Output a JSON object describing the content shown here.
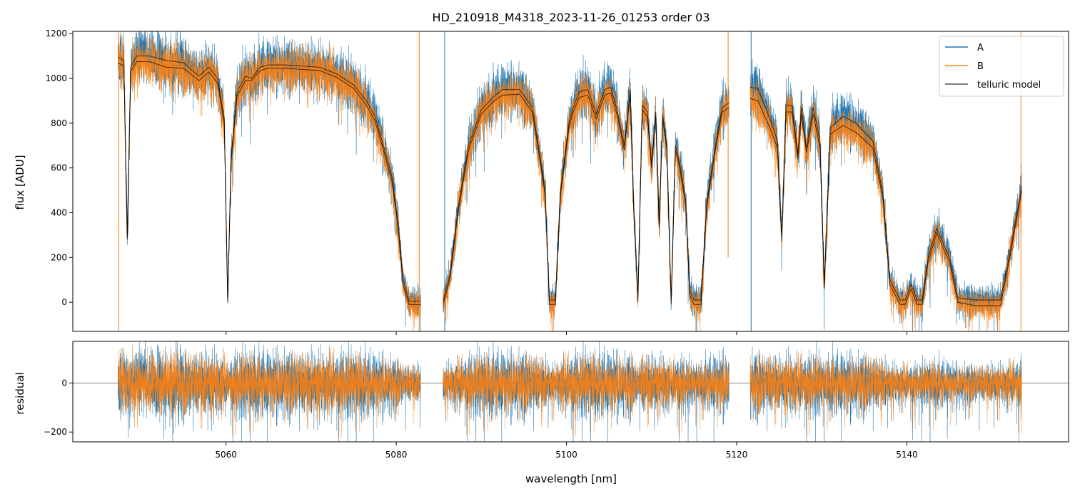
{
  "chart_data": {
    "type": "line",
    "title": "HD_210918_M4318_2023-11-26_01253  order 03",
    "xlabel": "wavelength [nm]",
    "xlim": [
      5042,
      5159
    ],
    "xticks": [
      5060,
      5080,
      5100,
      5120,
      5140
    ],
    "legend_position": "top-right",
    "colors": {
      "A": "#1f77b4",
      "B": "#ff7f0e",
      "model": "#000000"
    },
    "segments": [
      [
        5047.3,
        5082.9
      ],
      [
        5085.5,
        5119.1
      ],
      [
        5121.6,
        5153.5
      ]
    ],
    "panels": [
      {
        "name": "flux",
        "ylabel": "flux [ADU]",
        "ylim": [
          -130,
          1210
        ],
        "yticks": [
          0,
          200,
          400,
          600,
          800,
          1000,
          1200
        ],
        "legend": [
          "A",
          "B",
          "telluric model"
        ],
        "series": [
          {
            "name": "telluric model (A)",
            "x": [
              5047.3,
              5048.0,
              5048.4,
              5048.8,
              5049.5,
              5051,
              5053,
              5055,
              5056.8,
              5058.0,
              5059.0,
              5059.8,
              5060.2,
              5060.6,
              5061.3,
              5062.3,
              5063.0,
              5064.0,
              5065,
              5067,
              5069,
              5071,
              5073,
              5075,
              5076.5,
              5077.5,
              5078.5,
              5079.5,
              5080.2,
              5080.8,
              5081.5,
              5082.9,
              5085.5,
              5086.3,
              5087.3,
              5088.5,
              5090.0,
              5091.5,
              5092.5,
              5094.5,
              5096.0,
              5096.9,
              5097.5,
              5098.0,
              5098.7,
              5099.3,
              5100.3,
              5100.7,
              5101.5,
              5102.5,
              5103.5,
              5104.5,
              5105.2,
              5106.0,
              5106.8,
              5107.5,
              5107.9,
              5108.4,
              5108.9,
              5109.5,
              5110.0,
              5110.5,
              5110.9,
              5111.3,
              5111.8,
              5112.3,
              5112.8,
              5113.3,
              5114.0,
              5114.5,
              5115.0,
              5115.8,
              5116.5,
              5117.5,
              5118.3,
              5119.1,
              5121.6,
              5122.5,
              5124.0,
              5124.8,
              5125.3,
              5125.8,
              5126.5,
              5127.2,
              5127.6,
              5128.2,
              5129.0,
              5129.8,
              5130.3,
              5131.0,
              5132.5,
              5134.0,
              5136.0,
              5137.2,
              5138.0,
              5139.2,
              5139.8,
              5140.5,
              5141.2,
              5141.8,
              5142.5,
              5143.5,
              5145.0,
              5146.0,
              5148.0,
              5150.0,
              5151.0,
              5152.0,
              5153.5
            ],
            "y": [
              1095,
              1080,
              290,
              1050,
              1100,
              1100,
              1080,
              1070,
              1010,
              1050,
              1000,
              820,
              5,
              650,
              940,
              1010,
              1000,
              1050,
              1060,
              1060,
              1055,
              1050,
              1020,
              970,
              900,
              830,
              700,
              560,
              360,
              100,
              5,
              5,
              5,
              120,
              430,
              700,
              860,
              920,
              950,
              950,
              870,
              650,
              500,
              10,
              10,
              500,
              800,
              860,
              940,
              950,
              840,
              950,
              960,
              850,
              700,
              950,
              440,
              20,
              880,
              850,
              620,
              850,
              350,
              840,
              700,
              5,
              700,
              620,
              460,
              50,
              10,
              10,
              450,
              700,
              870,
              890,
              960,
              955,
              810,
              720,
              290,
              880,
              880,
              660,
              870,
              690,
              870,
              720,
              80,
              780,
              830,
              800,
              720,
              480,
              100,
              10,
              10,
              80,
              10,
              10,
              200,
              330,
              200,
              20,
              10,
              10,
              10,
              200,
              520
            ],
            "color": "#000000"
          },
          {
            "name": "telluric model (B)",
            "x": [
              5047.3,
              5048.0,
              5048.4,
              5048.8,
              5049.5,
              5051,
              5053,
              5055,
              5056.8,
              5058.0,
              5059.0,
              5059.8,
              5060.2,
              5060.6,
              5061.3,
              5062.3,
              5063.0,
              5064.0,
              5065,
              5067,
              5069,
              5071,
              5073,
              5075,
              5076.5,
              5077.5,
              5078.5,
              5079.5,
              5080.2,
              5080.8,
              5081.5,
              5082.9,
              5085.5,
              5086.3,
              5087.3,
              5088.5,
              5090.0,
              5091.5,
              5092.5,
              5094.5,
              5096.0,
              5096.9,
              5097.5,
              5098.0,
              5098.7,
              5099.3,
              5100.3,
              5100.7,
              5101.5,
              5102.5,
              5103.5,
              5104.5,
              5105.2,
              5106.0,
              5106.8,
              5107.5,
              5107.9,
              5108.4,
              5108.9,
              5109.5,
              5110.0,
              5110.5,
              5110.9,
              5111.3,
              5111.8,
              5112.3,
              5112.8,
              5113.3,
              5114.0,
              5114.5,
              5115.0,
              5115.8,
              5116.5,
              5117.5,
              5118.3,
              5119.1,
              5121.6,
              5122.5,
              5124.0,
              5124.8,
              5125.3,
              5125.8,
              5126.5,
              5127.2,
              5127.6,
              5128.2,
              5129.0,
              5129.8,
              5130.3,
              5131.0,
              5132.5,
              5134.0,
              5136.0,
              5137.2,
              5138.0,
              5139.2,
              5139.8,
              5140.5,
              5141.2,
              5141.8,
              5142.5,
              5143.5,
              5145.0,
              5146.0,
              5148.0,
              5150.0,
              5151.0,
              5152.0,
              5153.5
            ],
            "y": [
              1070,
              1055,
              280,
              1030,
              1075,
              1075,
              1050,
              1045,
              990,
              1030,
              980,
              800,
              0,
              630,
              920,
              990,
              990,
              1035,
              1045,
              1045,
              1040,
              1035,
              1005,
              955,
              880,
              810,
              680,
              540,
              340,
              80,
              -10,
              -10,
              -10,
              100,
              410,
              680,
              840,
              900,
              925,
              930,
              850,
              630,
              480,
              -10,
              -10,
              480,
              780,
              840,
              915,
              925,
              820,
              925,
              935,
              830,
              680,
              930,
              420,
              0,
              860,
              830,
              600,
              830,
              330,
              820,
              680,
              -10,
              680,
              600,
              440,
              30,
              -10,
              -10,
              430,
              680,
              850,
              870,
              910,
              900,
              770,
              690,
              270,
              850,
              850,
              640,
              840,
              670,
              840,
              690,
              60,
              750,
              790,
              760,
              690,
              460,
              80,
              -10,
              -10,
              60,
              -10,
              -10,
              180,
              310,
              180,
              0,
              -15,
              -15,
              -15,
              180,
              500
            ],
            "color": "#000000"
          }
        ]
      },
      {
        "name": "residual",
        "ylabel": "residual",
        "ylim": [
          -240,
          170
        ],
        "yticks": [
          -200,
          0
        ],
        "reference_line_y": 0
      }
    ]
  }
}
